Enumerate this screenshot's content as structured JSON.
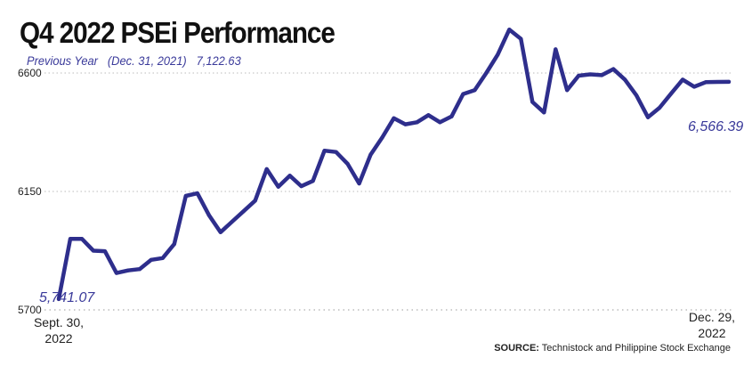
{
  "chart_data": {
    "type": "line",
    "title": "Q4 2022 PSEi Performance",
    "previous_year": {
      "label": "Previous Year",
      "date": "(Dec. 31, 2021)",
      "value": "7,122.63"
    },
    "ylim": [
      5700,
      6700
    ],
    "y_ticks": [
      "6600",
      "6150",
      "5700"
    ],
    "y_tick_values": [
      6600,
      6150,
      5700
    ],
    "grid": true,
    "x_labels": {
      "start": [
        "Sept. 30,",
        "2022"
      ],
      "end": [
        "Dec. 29,",
        "2022"
      ]
    },
    "start_label": "5,741.07",
    "end_label": "6,566.39",
    "series": [
      {
        "color": "#2e2e8c",
        "values": [
          5741.07,
          5970,
          5970,
          5925,
          5923,
          5840,
          5850,
          5855,
          5890,
          5897,
          5950,
          6133,
          6143,
          6060,
          5995,
          6035,
          6075,
          6115,
          6235,
          6168,
          6210,
          6170,
          6190,
          6305,
          6300,
          6255,
          6180,
          6290,
          6355,
          6428,
          6405,
          6413,
          6440,
          6413,
          6435,
          6520,
          6535,
          6600,
          6670,
          6765,
          6730,
          6490,
          6450,
          6690,
          6535,
          6590,
          6595,
          6592,
          6615,
          6575,
          6515,
          6432,
          6468,
          6522,
          6575,
          6548,
          6565,
          6566,
          6566.39
        ]
      }
    ],
    "colors": {
      "line": "#2e2e8c",
      "grid": "#bbbbbb",
      "accent_text": "#3a3a9a"
    }
  },
  "source": {
    "prefix": "SOURCE:",
    "text": " Technistock and Philippine Stock Exchange"
  }
}
